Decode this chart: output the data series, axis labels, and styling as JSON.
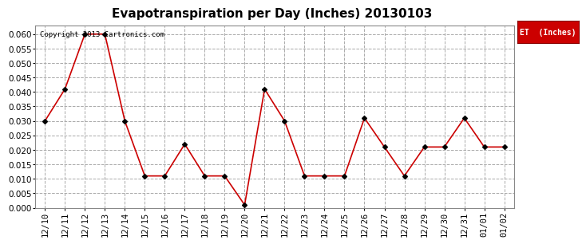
{
  "title": "Evapotranspiration per Day (Inches) 20130103",
  "copyright_text": "Copyright 2013 Cartronics.com",
  "legend_label": "ET  (Inches)",
  "legend_bg": "#cc0000",
  "legend_fg": "#ffffff",
  "x_labels": [
    "12/10",
    "12/11",
    "12/12",
    "12/13",
    "12/14",
    "12/15",
    "12/16",
    "12/17",
    "12/18",
    "12/19",
    "12/20",
    "12/21",
    "12/22",
    "12/23",
    "12/24",
    "12/25",
    "12/26",
    "12/27",
    "12/28",
    "12/29",
    "12/30",
    "12/31",
    "01/01",
    "01/02"
  ],
  "y_values": [
    0.03,
    0.041,
    0.06,
    0.06,
    0.03,
    0.011,
    0.011,
    0.022,
    0.011,
    0.011,
    0.001,
    0.041,
    0.03,
    0.011,
    0.011,
    0.011,
    0.031,
    0.021,
    0.011,
    0.021,
    0.021,
    0.031,
    0.021,
    0.021
  ],
  "line_color": "#cc0000",
  "marker": "D",
  "marker_size": 3,
  "marker_color": "#000000",
  "ylim": [
    0.0,
    0.063
  ],
  "yticks": [
    0.0,
    0.005,
    0.01,
    0.015,
    0.02,
    0.025,
    0.03,
    0.035,
    0.04,
    0.045,
    0.05,
    0.055,
    0.06
  ],
  "grid_color": "#aaaaaa",
  "grid_style": "--",
  "bg_color": "#ffffff",
  "title_fontsize": 11,
  "tick_fontsize": 7.5,
  "copyright_fontsize": 6.5
}
